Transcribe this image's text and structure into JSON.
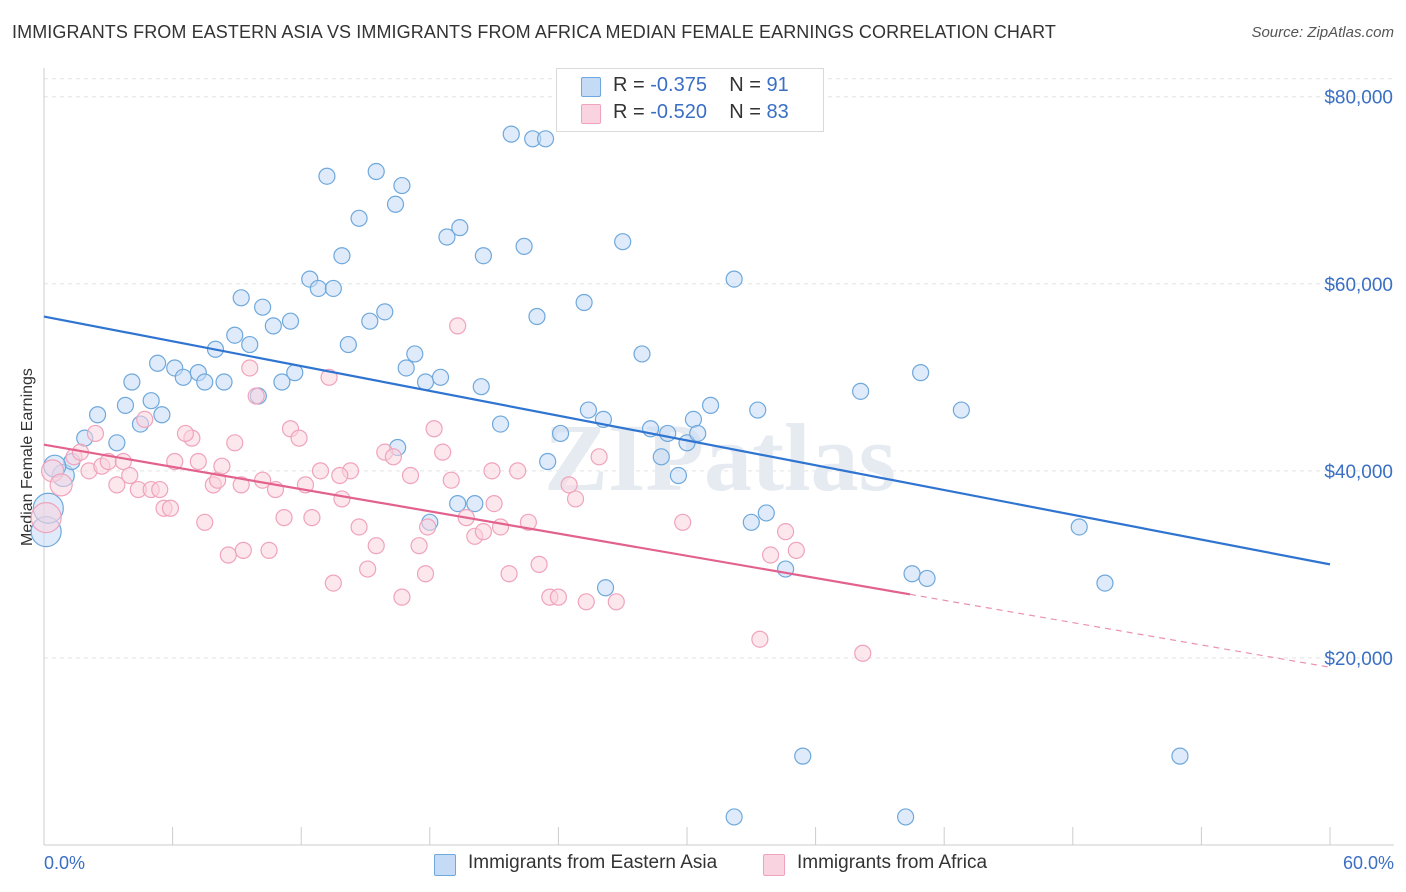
{
  "chart_data": {
    "type": "scatter",
    "title": "IMMIGRANTS FROM EASTERN ASIA VS IMMIGRANTS FROM AFRICA MEDIAN FEMALE EARNINGS CORRELATION CHART",
    "source": "Source: ZipAtlas.com",
    "watermark": "ZIPatlas",
    "ylabel": "Median Female Earnings",
    "xlim": [
      0,
      60
    ],
    "ylim": [
      0,
      82000
    ],
    "y_ticks": [
      {
        "value": 20000,
        "label": "$20,000"
      },
      {
        "value": 40000,
        "label": "$40,000"
      },
      {
        "value": 60000,
        "label": "$60,000"
      },
      {
        "value": 80000,
        "label": "$80,000"
      }
    ],
    "x_tick_labels": {
      "min": "0.0%",
      "max": "60.0%"
    },
    "legend": [
      {
        "r_label": "R =",
        "r": "-0.375",
        "n_label": "N =",
        "n": "91"
      },
      {
        "r_label": "R =",
        "r": "-0.520",
        "n_label": "N =",
        "n": "83"
      }
    ],
    "series": [
      {
        "name": "Immigrants from Eastern Asia",
        "color": "#6fa8dc",
        "fill": "#c5dbf5",
        "line_color": "#2f74d0",
        "trend": {
          "x0": 0,
          "y0": 56500,
          "x1": 60,
          "y1": 30000
        },
        "points": [
          [
            0.1,
            33500
          ],
          [
            0.2,
            36000
          ],
          [
            0.9,
            39500
          ],
          [
            1.3,
            41000
          ],
          [
            1.9,
            43500
          ],
          [
            3.4,
            43000
          ],
          [
            2.5,
            46000
          ],
          [
            3.8,
            47000
          ],
          [
            4.1,
            49500
          ],
          [
            4.5,
            45000
          ],
          [
            5.0,
            47500
          ],
          [
            5.5,
            46000
          ],
          [
            5.3,
            51500
          ],
          [
            6.1,
            51000
          ],
          [
            6.5,
            50000
          ],
          [
            7.2,
            50500
          ],
          [
            7.5,
            49500
          ],
          [
            8.4,
            49500
          ],
          [
            8.0,
            53000
          ],
          [
            8.9,
            54500
          ],
          [
            9.2,
            58500
          ],
          [
            9.6,
            53500
          ],
          [
            10.0,
            48000
          ],
          [
            10.2,
            57500
          ],
          [
            10.7,
            55500
          ],
          [
            11.5,
            56000
          ],
          [
            11.1,
            49500
          ],
          [
            11.7,
            50500
          ],
          [
            12.4,
            60500
          ],
          [
            12.8,
            59500
          ],
          [
            13.2,
            71500
          ],
          [
            13.5,
            59500
          ],
          [
            13.9,
            63000
          ],
          [
            14.2,
            53500
          ],
          [
            14.7,
            67000
          ],
          [
            15.2,
            56000
          ],
          [
            15.5,
            72000
          ],
          [
            15.9,
            57000
          ],
          [
            16.4,
            68500
          ],
          [
            16.7,
            70500
          ],
          [
            16.9,
            51000
          ],
          [
            17.3,
            52500
          ],
          [
            17.8,
            49500
          ],
          [
            18.5,
            50000
          ],
          [
            18.8,
            65000
          ],
          [
            19.4,
            66000
          ],
          [
            19.3,
            36500
          ],
          [
            20.1,
            36500
          ],
          [
            20.4,
            49000
          ],
          [
            20.5,
            63000
          ],
          [
            21.3,
            45000
          ],
          [
            21.8,
            76000
          ],
          [
            22.4,
            64000
          ],
          [
            22.8,
            75500
          ],
          [
            23.0,
            56500
          ],
          [
            23.4,
            75500
          ],
          [
            23.5,
            41000
          ],
          [
            24.1,
            44000
          ],
          [
            25.2,
            58000
          ],
          [
            25.4,
            46500
          ],
          [
            26.1,
            45500
          ],
          [
            26.2,
            27500
          ],
          [
            27.0,
            64500
          ],
          [
            27.9,
            52500
          ],
          [
            28.3,
            44500
          ],
          [
            28.8,
            41500
          ],
          [
            29.1,
            44000
          ],
          [
            29.6,
            39500
          ],
          [
            30.0,
            43000
          ],
          [
            30.3,
            45500
          ],
          [
            30.5,
            44000
          ],
          [
            31.1,
            47000
          ],
          [
            32.2,
            3000
          ],
          [
            32.2,
            60500
          ],
          [
            33.0,
            34500
          ],
          [
            33.3,
            46500
          ],
          [
            33.7,
            35500
          ],
          [
            34.6,
            29500
          ],
          [
            35.4,
            9500
          ],
          [
            38.1,
            48500
          ],
          [
            40.2,
            3000
          ],
          [
            40.5,
            29000
          ],
          [
            40.9,
            50500
          ],
          [
            41.2,
            28500
          ],
          [
            42.8,
            46500
          ],
          [
            48.3,
            34000
          ],
          [
            49.5,
            28000
          ],
          [
            53.0,
            9500
          ],
          [
            0.5,
            40500
          ],
          [
            16.5,
            42500
          ],
          [
            18.0,
            34500
          ]
        ]
      },
      {
        "name": "Immigrants from Africa",
        "color": "#f0a3bc",
        "fill": "#f9d3df",
        "line_color": "#e2628d",
        "trend": {
          "x0": 0,
          "y0": 42800,
          "x1": 40.4,
          "y1": 26800
        },
        "trend_dash": {
          "x0": 40.4,
          "y0": 26800,
          "x1": 60,
          "y1": 19000
        },
        "points": [
          [
            0.1,
            35000
          ],
          [
            0.4,
            40000
          ],
          [
            0.8,
            38500
          ],
          [
            1.4,
            41500
          ],
          [
            1.7,
            42000
          ],
          [
            2.1,
            40000
          ],
          [
            2.4,
            44000
          ],
          [
            2.7,
            40500
          ],
          [
            3.0,
            41000
          ],
          [
            3.4,
            38500
          ],
          [
            3.7,
            41000
          ],
          [
            4.0,
            39500
          ],
          [
            4.4,
            38000
          ],
          [
            4.7,
            45500
          ],
          [
            5.0,
            38000
          ],
          [
            5.4,
            38000
          ],
          [
            5.6,
            36000
          ],
          [
            5.9,
            36000
          ],
          [
            6.1,
            41000
          ],
          [
            6.9,
            43500
          ],
          [
            7.2,
            41000
          ],
          [
            7.5,
            34500
          ],
          [
            7.9,
            38500
          ],
          [
            8.1,
            39000
          ],
          [
            8.3,
            40500
          ],
          [
            8.6,
            31000
          ],
          [
            8.9,
            43000
          ],
          [
            9.2,
            38500
          ],
          [
            9.3,
            31500
          ],
          [
            9.6,
            51000
          ],
          [
            9.9,
            48000
          ],
          [
            10.2,
            39000
          ],
          [
            10.5,
            31500
          ],
          [
            10.8,
            38000
          ],
          [
            11.2,
            35000
          ],
          [
            11.5,
            44500
          ],
          [
            11.9,
            43500
          ],
          [
            12.2,
            38500
          ],
          [
            12.5,
            35000
          ],
          [
            12.9,
            40000
          ],
          [
            13.3,
            50000
          ],
          [
            13.5,
            28000
          ],
          [
            13.9,
            37000
          ],
          [
            14.3,
            40000
          ],
          [
            14.7,
            34000
          ],
          [
            15.1,
            29500
          ],
          [
            15.5,
            32000
          ],
          [
            15.9,
            42000
          ],
          [
            16.3,
            41500
          ],
          [
            16.7,
            26500
          ],
          [
            17.1,
            39500
          ],
          [
            17.5,
            32000
          ],
          [
            17.8,
            29000
          ],
          [
            18.2,
            44500
          ],
          [
            18.6,
            42000
          ],
          [
            19.0,
            39000
          ],
          [
            19.3,
            55500
          ],
          [
            19.7,
            35000
          ],
          [
            20.1,
            33000
          ],
          [
            20.5,
            33500
          ],
          [
            20.9,
            40000
          ],
          [
            21.3,
            34000
          ],
          [
            21.7,
            29000
          ],
          [
            22.1,
            40000
          ],
          [
            22.6,
            34500
          ],
          [
            23.1,
            30000
          ],
          [
            23.6,
            26500
          ],
          [
            24.0,
            26500
          ],
          [
            24.5,
            38500
          ],
          [
            24.8,
            37000
          ],
          [
            25.3,
            26000
          ],
          [
            25.9,
            41500
          ],
          [
            29.8,
            34500
          ],
          [
            33.4,
            22000
          ],
          [
            33.9,
            31000
          ],
          [
            34.6,
            33500
          ],
          [
            35.1,
            31500
          ],
          [
            38.2,
            20500
          ],
          [
            6.6,
            44000
          ],
          [
            13.8,
            39500
          ],
          [
            17.9,
            34000
          ],
          [
            21.0,
            36500
          ],
          [
            26.7,
            26000
          ]
        ]
      }
    ]
  }
}
